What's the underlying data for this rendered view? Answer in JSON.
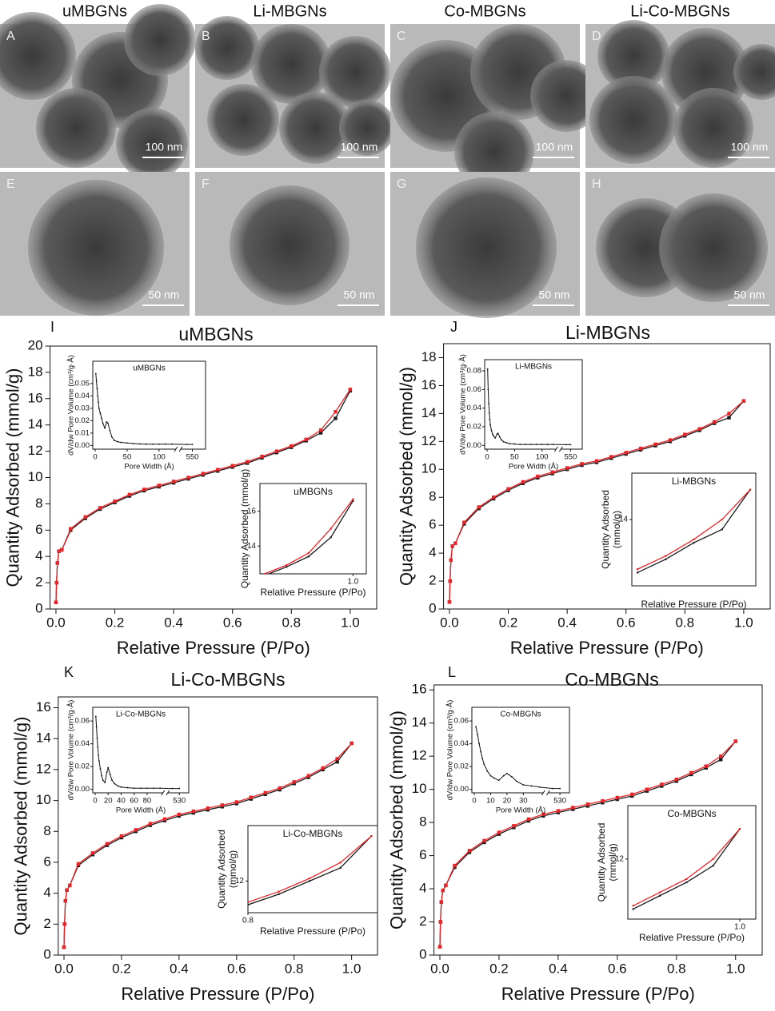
{
  "images": {
    "titles": [
      "uMBGNs",
      "Li-MBGNs",
      "Co-MBGNs",
      "Li-Co-MBGNs"
    ],
    "panels": [
      {
        "letter": "A",
        "scale": "100 nm"
      },
      {
        "letter": "B",
        "scale": "100 nm"
      },
      {
        "letter": "C",
        "scale": "100 nm"
      },
      {
        "letter": "D",
        "scale": "100 nm"
      },
      {
        "letter": "E",
        "scale": "50 nm"
      },
      {
        "letter": "F",
        "scale": "50 nm"
      },
      {
        "letter": "G",
        "scale": "50 nm"
      },
      {
        "letter": "H",
        "scale": "50 nm"
      }
    ]
  },
  "chart_data": [
    {
      "type": "line",
      "panel": "I",
      "title": "uMBGNs",
      "x_label": "Relative Pressure (P/Po)",
      "y_label": "Quantity Adsorbed (mmol/g)",
      "x": [
        0,
        0.002,
        0.005,
        0.01,
        0.02,
        0.05,
        0.1,
        0.15,
        0.2,
        0.25,
        0.3,
        0.35,
        0.4,
        0.45,
        0.5,
        0.55,
        0.6,
        0.65,
        0.7,
        0.75,
        0.8,
        0.85,
        0.9,
        0.95,
        1.0
      ],
      "xlim": [
        -0.02,
        1.09
      ],
      "xticks": [
        {
          "value": 0,
          "label": "0.0"
        },
        0.2,
        0.4,
        0.6,
        0.8,
        {
          "value": 1,
          "label": "1.0"
        }
      ],
      "ylim": [
        0,
        20
      ],
      "yticks": [
        0,
        2,
        4,
        6,
        8,
        10,
        12,
        14,
        16,
        18,
        20
      ],
      "series": [
        {
          "color": "#1a1a1a",
          "values": [
            0.5,
            2,
            3.5,
            4.4,
            4.5,
            6.0,
            6.9,
            7.6,
            8.1,
            8.6,
            9.0,
            9.3,
            9.6,
            9.9,
            10.2,
            10.5,
            10.8,
            11.1,
            11.5,
            11.9,
            12.3,
            12.8,
            13.4,
            14.5,
            16.6
          ]
        },
        {
          "color": "#e8262a",
          "values": [
            0.5,
            2,
            3.5,
            4.4,
            4.5,
            6.1,
            7.0,
            7.7,
            8.2,
            8.7,
            9.1,
            9.4,
            9.7,
            10.0,
            10.3,
            10.6,
            10.9,
            11.2,
            11.6,
            12.0,
            12.4,
            12.9,
            13.6,
            15.0,
            16.7
          ]
        }
      ],
      "pore_inset": {
        "title": "uMBGNs",
        "x_label": "Pore Width (Å)",
        "y_label": "dV/dw Pore Volume (cm³/g·Å)",
        "x": [
          1,
          2,
          3,
          4,
          5,
          6,
          8,
          10,
          12,
          15,
          18,
          20,
          23,
          26,
          30,
          35,
          40,
          50,
          60,
          70,
          80,
          90,
          100,
          110,
          120,
          545,
          550
        ],
        "values": [
          0.058,
          0.052,
          0.046,
          0.04,
          0.035,
          0.03,
          0.026,
          0.022,
          0.018,
          0.014,
          0.019,
          0.018,
          0.012,
          0.007,
          0.004,
          0.003,
          0.0025,
          0.002,
          0.0015,
          0.0012,
          0.001,
          0.001,
          0.001,
          0.001,
          0.001,
          0.0008,
          0.0008
        ],
        "xlim": [
          0,
          560
        ],
        "xbreak": [
          125,
          540
        ],
        "xticks": [
          0,
          50,
          100,
          550
        ],
        "ylim": [
          -0.003,
          0.068
        ],
        "yticks": [
          {
            "value": 0,
            "label": "0.00"
          },
          0.01,
          0.02,
          0.03,
          0.04,
          0.05
        ]
      },
      "zoom_inset": {
        "title": "uMBGNs",
        "x_label": "Relative Pressure (P/Po)",
        "y_label": [
          "Quantity Adsorbed (mmol/g)"
        ],
        "xlim": [
          0.79,
          1.03
        ],
        "ylim": [
          12.4,
          17.6
        ],
        "xticks": [
          {
            "value": 1,
            "label": "1.0"
          }
        ],
        "yticks": [
          14,
          16
        ]
      }
    },
    {
      "type": "line",
      "panel": "J",
      "title": "Li-MBGNs",
      "x_label": "Relative Pressure (P/Po)",
      "y_label": "Quantity Adsorbed (mmol/g)",
      "x": [
        0,
        0.002,
        0.005,
        0.01,
        0.02,
        0.05,
        0.1,
        0.15,
        0.2,
        0.25,
        0.3,
        0.35,
        0.4,
        0.45,
        0.5,
        0.55,
        0.6,
        0.65,
        0.7,
        0.75,
        0.8,
        0.85,
        0.9,
        0.95,
        1.0
      ],
      "xlim": [
        -0.02,
        1.09
      ],
      "xticks": [
        {
          "value": 0,
          "label": "0.0"
        },
        0.2,
        0.4,
        0.6,
        0.8,
        {
          "value": 1,
          "label": "1.0"
        }
      ],
      "ylim": [
        0,
        19
      ],
      "yticks": [
        0,
        2,
        4,
        6,
        8,
        10,
        12,
        14,
        16,
        18
      ],
      "series": [
        {
          "color": "#1a1a1a",
          "values": [
            0.5,
            2,
            3.5,
            4.5,
            4.7,
            6.1,
            7.2,
            7.9,
            8.5,
            9.0,
            9.4,
            9.7,
            10.0,
            10.3,
            10.5,
            10.8,
            11.1,
            11.4,
            11.7,
            12.0,
            12.4,
            12.8,
            13.3,
            13.7,
            14.9
          ]
        },
        {
          "color": "#e8262a",
          "values": [
            0.5,
            2,
            3.5,
            4.5,
            4.7,
            6.2,
            7.3,
            8.0,
            8.6,
            9.1,
            9.5,
            9.8,
            10.1,
            10.4,
            10.6,
            10.9,
            11.2,
            11.5,
            11.8,
            12.1,
            12.5,
            12.9,
            13.4,
            14.0,
            14.9
          ]
        }
      ],
      "pore_inset": {
        "title": "Li-MBGNs",
        "x_label": "Pore Width (Å)",
        "y_label": "dV/dw Pore Volume (cm³/g·Å)",
        "x": [
          1,
          2,
          3,
          4,
          5,
          6,
          8,
          10,
          12,
          15,
          18,
          20,
          23,
          26,
          30,
          35,
          40,
          50,
          60,
          70,
          80,
          90,
          100,
          110,
          120,
          545,
          550
        ],
        "values": [
          0.082,
          0.06,
          0.045,
          0.035,
          0.028,
          0.022,
          0.016,
          0.012,
          0.01,
          0.008,
          0.012,
          0.013,
          0.009,
          0.006,
          0.004,
          0.003,
          0.002,
          0.0015,
          0.001,
          0.001,
          0.001,
          0.001,
          0.001,
          0.001,
          0.001,
          0.0008,
          0.0008
        ],
        "xlim": [
          0,
          560
        ],
        "xbreak": [
          125,
          540
        ],
        "xticks": [
          0,
          50,
          100,
          550
        ],
        "ylim": [
          -0.004,
          0.092
        ],
        "yticks": [
          {
            "value": 0,
            "label": "0.00"
          },
          0.02,
          0.04,
          0.06,
          0.08
        ]
      },
      "zoom_inset": {
        "title": "Li-MBGNs",
        "x_label": "Relative Pressure (P/Po)",
        "y_label": [
          "Quantity Adsorbed",
          "(mmol/g)"
        ],
        "xlim": [
          0.79,
          1.01
        ],
        "ylim": [
          12.0,
          15.4
        ],
        "xticks": [],
        "yticks": [
          14
        ]
      }
    },
    {
      "type": "line",
      "panel": "K",
      "title": "Li-Co-MBGNs",
      "x_label": "Relative Pressure (P/Po)",
      "y_label": "Quantity Adsorbed (mmol/g)",
      "x": [
        0,
        0.002,
        0.005,
        0.01,
        0.02,
        0.05,
        0.1,
        0.15,
        0.2,
        0.25,
        0.3,
        0.35,
        0.4,
        0.45,
        0.5,
        0.55,
        0.6,
        0.65,
        0.7,
        0.75,
        0.8,
        0.85,
        0.9,
        0.95,
        1.0
      ],
      "xlim": [
        -0.02,
        1.09
      ],
      "xticks": [
        {
          "value": 0,
          "label": "0.0"
        },
        0.2,
        0.4,
        0.6,
        0.8,
        {
          "value": 1,
          "label": "1.0"
        }
      ],
      "ylim": [
        0,
        16.7
      ],
      "yticks": [
        0,
        2,
        4,
        6,
        8,
        10,
        12,
        14,
        16
      ],
      "series": [
        {
          "color": "#1a1a1a",
          "values": [
            0.5,
            2,
            3.5,
            4.2,
            4.5,
            5.8,
            6.5,
            7.1,
            7.6,
            8.0,
            8.4,
            8.7,
            9.0,
            9.2,
            9.4,
            9.6,
            9.8,
            10.1,
            10.4,
            10.7,
            11.1,
            11.5,
            12.0,
            12.5,
            13.7
          ]
        },
        {
          "color": "#e8262a",
          "values": [
            0.5,
            2,
            3.5,
            4.2,
            4.5,
            5.9,
            6.6,
            7.2,
            7.7,
            8.1,
            8.5,
            8.8,
            9.1,
            9.3,
            9.5,
            9.7,
            9.9,
            10.2,
            10.5,
            10.8,
            11.2,
            11.6,
            12.1,
            12.7,
            13.7
          ]
        }
      ],
      "pore_inset": {
        "title": "Li-Co-MBGNs",
        "x_label": "Pore Width (Å)",
        "y_label": "dV/dw Pore Volume (cm³/g·Å)",
        "x": [
          1,
          2,
          3,
          4,
          5,
          6,
          8,
          10,
          12,
          15,
          18,
          20,
          23,
          26,
          30,
          35,
          40,
          50,
          60,
          70,
          80,
          90,
          100,
          525,
          530
        ],
        "values": [
          0.064,
          0.055,
          0.045,
          0.037,
          0.03,
          0.025,
          0.018,
          0.012,
          0.008,
          0.006,
          0.015,
          0.019,
          0.013,
          0.008,
          0.005,
          0.003,
          0.002,
          0.0015,
          0.001,
          0.001,
          0.001,
          0.001,
          0.001,
          0.0008,
          0.0008
        ],
        "xlim": [
          0,
          535
        ],
        "xbreak": [
          104,
          522
        ],
        "xticks": [
          0,
          20,
          40,
          60,
          80,
          530
        ],
        "ylim": [
          -0.003,
          0.072
        ],
        "yticks": [
          {
            "value": 0,
            "label": "0.00"
          },
          0.02,
          0.04,
          0.06
        ]
      },
      "zoom_inset": {
        "title": "Li-Co-MBGNs",
        "x_label": "Relative Pressure (P/Po)",
        "y_label": [
          "Quantity Adsorbed",
          "(mmol/g)"
        ],
        "xlim": [
          0.8,
          1.01
        ],
        "ylim": [
          10.8,
          14.1
        ],
        "xticks": [
          0.8
        ],
        "yticks": [
          12
        ]
      }
    },
    {
      "type": "line",
      "panel": "L",
      "title": "Co-MBGNs",
      "x_label": "Relative Pressure (P/Po)",
      "y_label": "Quantity Adsorbed (mmol/g)",
      "x": [
        0,
        0.002,
        0.005,
        0.01,
        0.02,
        0.05,
        0.1,
        0.15,
        0.2,
        0.25,
        0.3,
        0.35,
        0.4,
        0.45,
        0.5,
        0.55,
        0.6,
        0.65,
        0.7,
        0.75,
        0.8,
        0.85,
        0.9,
        0.95,
        1.0
      ],
      "xlim": [
        -0.02,
        1.09
      ],
      "xticks": [
        {
          "value": 0,
          "label": "0.0"
        },
        0.2,
        0.4,
        0.6,
        0.8,
        {
          "value": 1,
          "label": "1.0"
        }
      ],
      "ylim": [
        0,
        16.3
      ],
      "yticks": [
        0,
        2,
        4,
        6,
        8,
        10,
        12,
        14,
        16
      ],
      "series": [
        {
          "color": "#1a1a1a",
          "values": [
            0.5,
            2,
            3.2,
            3.9,
            4.2,
            5.3,
            6.2,
            6.8,
            7.3,
            7.7,
            8.1,
            8.4,
            8.6,
            8.8,
            9.0,
            9.2,
            9.4,
            9.6,
            9.9,
            10.2,
            10.5,
            10.9,
            11.3,
            11.8,
            12.9
          ]
        },
        {
          "color": "#e8262a",
          "values": [
            0.5,
            2,
            3.2,
            3.9,
            4.2,
            5.4,
            6.3,
            6.9,
            7.4,
            7.8,
            8.2,
            8.5,
            8.7,
            8.9,
            9.1,
            9.3,
            9.5,
            9.7,
            10.0,
            10.3,
            10.6,
            11.0,
            11.4,
            12.0,
            12.9
          ]
        }
      ],
      "pore_inset": {
        "title": "Co-MBGNs",
        "x_label": "Pore Width (Å)",
        "y_label": "dV/dw Pore Volume (cm³/g·Å)",
        "x": [
          1,
          2,
          3,
          4,
          5,
          6,
          8,
          10,
          12,
          15,
          18,
          20,
          23,
          26,
          30,
          35,
          40,
          525,
          530
        ],
        "values": [
          0.055,
          0.048,
          0.04,
          0.033,
          0.027,
          0.022,
          0.016,
          0.012,
          0.01,
          0.008,
          0.012,
          0.014,
          0.011,
          0.007,
          0.004,
          0.003,
          0.002,
          0.0008,
          0.0008
        ],
        "xlim": [
          0,
          535
        ],
        "xbreak": [
          42,
          522
        ],
        "xticks": [
          0,
          10,
          20,
          30,
          530
        ],
        "ylim": [
          -0.003,
          0.072
        ],
        "yticks": [
          {
            "value": 0,
            "label": "0.00"
          },
          0.02,
          0.04,
          0.06
        ]
      },
      "zoom_inset": {
        "title": "Co-MBGNs",
        "x_label": "Relative Pressure (P/Po)",
        "y_label": [
          "Quantity Adsorbed",
          "(mmol/g)"
        ],
        "xlim": [
          0.79,
          1.03
        ],
        "ylim": [
          10.2,
          13.6
        ],
        "xticks": [
          {
            "value": 1,
            "label": "1.0"
          }
        ],
        "yticks": [
          12
        ]
      }
    }
  ]
}
